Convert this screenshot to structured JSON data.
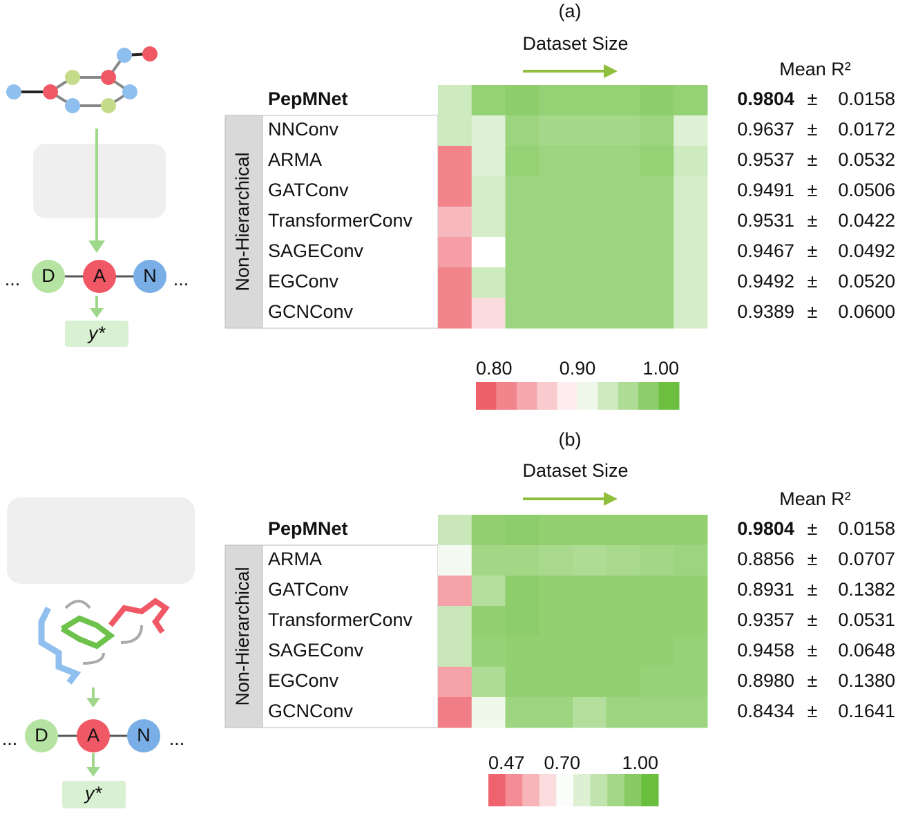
{
  "chart_data": [
    {
      "type": "heatmap",
      "title": "(a)",
      "x_label": "Dataset Size",
      "stat_header": "Mean R²",
      "pm": "±",
      "group_label": "Non-Hierarchical",
      "categories": [
        "PepMNet",
        "NNConv",
        "ARMA",
        "GATConv",
        "TransformerConv",
        "SAGEConv",
        "EGConv",
        "GCNConv"
      ],
      "values": [
        [
          0.93,
          0.965,
          0.97,
          0.965,
          0.965,
          0.965,
          0.97,
          0.965
        ],
        [
          0.93,
          0.92,
          0.96,
          0.955,
          0.955,
          0.955,
          0.96,
          0.92
        ],
        [
          0.83,
          0.92,
          0.965,
          0.96,
          0.96,
          0.96,
          0.965,
          0.93
        ],
        [
          0.83,
          0.925,
          0.96,
          0.96,
          0.96,
          0.96,
          0.96,
          0.925
        ],
        [
          0.86,
          0.925,
          0.96,
          0.96,
          0.96,
          0.96,
          0.96,
          0.925
        ],
        [
          0.845,
          0.9,
          0.96,
          0.96,
          0.96,
          0.96,
          0.96,
          0.925
        ],
        [
          0.83,
          0.93,
          0.96,
          0.96,
          0.96,
          0.96,
          0.96,
          0.925
        ],
        [
          0.83,
          0.88,
          0.96,
          0.96,
          0.96,
          0.96,
          0.96,
          0.925
        ]
      ],
      "mean_r2": [
        0.9804,
        0.9637,
        0.9537,
        0.9491,
        0.9531,
        0.9467,
        0.9492,
        0.9389
      ],
      "std": [
        0.0158,
        0.0172,
        0.0532,
        0.0506,
        0.0422,
        0.0492,
        {
          "value": 0.052,
          "label": "0.0520"
        },
        {
          "value": 0.06,
          "label": "0.0600"
        }
      ],
      "clim": [
        0.8,
        1.0
      ],
      "cmid": 0.9,
      "cticks": [
        {
          "value": 0.8,
          "label": "0.80"
        },
        {
          "value": 0.9,
          "label": "0.90"
        },
        {
          "value": 1.0,
          "label": "1.00"
        }
      ],
      "colorscale": [
        "#ec4f5b",
        "#ffffff",
        "#5cb82a"
      ]
    },
    {
      "type": "heatmap",
      "title": "(b)",
      "x_label": "Dataset Size",
      "stat_header": "Mean R²",
      "pm": "±",
      "group_label": "Non-Hierarchical",
      "categories": [
        "PepMNet",
        "ARMA",
        "GATConv",
        "TransformerConv",
        "SAGEConv",
        "EGConv",
        "GCNConv"
      ],
      "values": [
        [
          0.8,
          0.9,
          0.91,
          0.9,
          0.9,
          0.9,
          0.9,
          0.9
        ],
        [
          0.72,
          0.87,
          0.87,
          0.86,
          0.85,
          0.86,
          0.87,
          0.88
        ],
        [
          0.58,
          0.84,
          0.91,
          0.9,
          0.9,
          0.9,
          0.9,
          0.9
        ],
        [
          0.8,
          0.9,
          0.91,
          0.9,
          0.9,
          0.9,
          0.9,
          0.9
        ],
        [
          0.8,
          0.89,
          0.9,
          0.9,
          0.9,
          0.9,
          0.9,
          0.89
        ],
        [
          0.58,
          0.85,
          0.9,
          0.9,
          0.9,
          0.9,
          0.89,
          0.89
        ],
        [
          0.53,
          0.73,
          0.88,
          0.88,
          0.84,
          0.88,
          0.88,
          0.88
        ]
      ],
      "mean_r2": [
        0.9804,
        0.8856,
        0.8931,
        0.9357,
        0.9458,
        {
          "value": 0.898,
          "label": "0.8980"
        },
        0.8434
      ],
      "std": [
        0.0158,
        0.0707,
        0.1382,
        0.0531,
        0.0648,
        {
          "value": 0.138,
          "label": "0.1380"
        },
        0.1641
      ],
      "clim": [
        0.47,
        1.0
      ],
      "cmid": 0.7,
      "cticks": [
        0.47,
        {
          "value": 0.7,
          "label": "0.70"
        },
        {
          "value": 1.0,
          "label": "1.00"
        }
      ],
      "colorscale": [
        "#ec4f5b",
        "#ffffff",
        "#5cb82a"
      ]
    }
  ],
  "diagrams": [
    {
      "nodes": [
        "D",
        "A",
        "N"
      ],
      "ellipsis": "...",
      "output": "y*"
    },
    {
      "nodes": [
        "D",
        "A",
        "N"
      ],
      "ellipsis": "...",
      "output": "y*"
    }
  ]
}
